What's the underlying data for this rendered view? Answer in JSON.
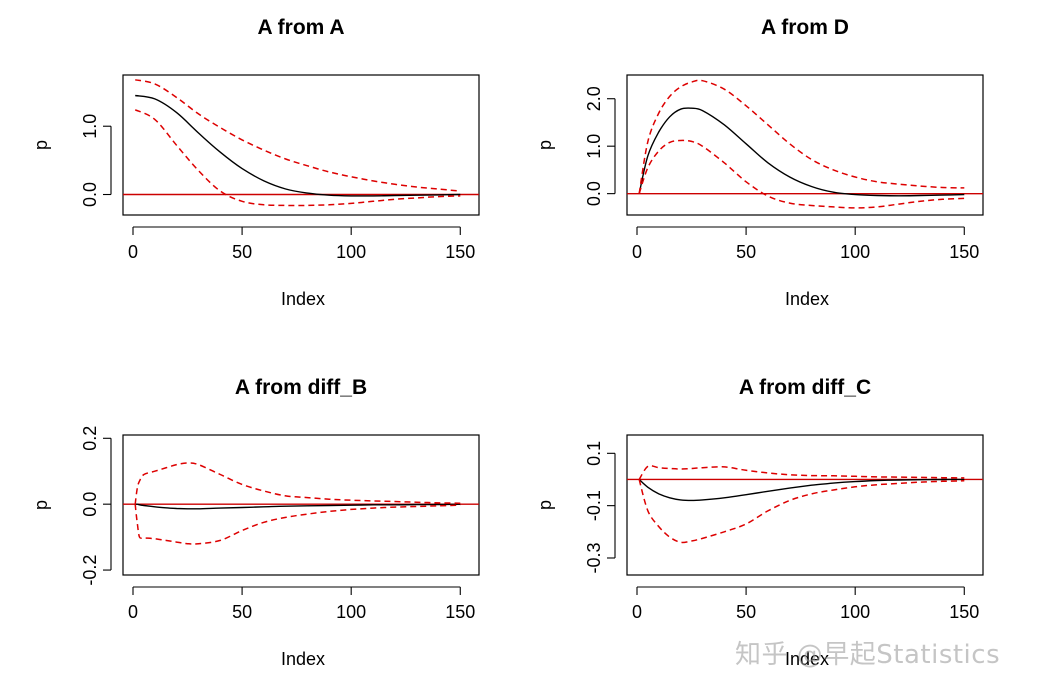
{
  "colors": {
    "estimate": "#000000",
    "band": "#dd0000",
    "zero": "#cc0000"
  },
  "watermark": "知乎 @早起Statistics",
  "chart_data": [
    {
      "type": "line",
      "title": "A from A",
      "xlabel": "Index",
      "ylabel": "p",
      "xlim": [
        0,
        154
      ],
      "ylim": [
        -0.3,
        1.75
      ],
      "xticks": [
        0,
        50,
        100,
        150
      ],
      "xtick_labels": [
        "0",
        "50",
        "100",
        "150"
      ],
      "yticks": [
        0.0,
        1.0
      ],
      "ytick_labels": [
        "0.0",
        "1.0"
      ],
      "x": [
        1,
        10,
        20,
        30,
        40,
        50,
        60,
        70,
        80,
        90,
        100,
        110,
        120,
        130,
        140,
        150
      ],
      "series": [
        {
          "name": "estimate",
          "style": "solid",
          "values": [
            1.45,
            1.4,
            1.2,
            0.9,
            0.62,
            0.38,
            0.2,
            0.08,
            0.02,
            -0.01,
            -0.02,
            -0.02,
            -0.015,
            -0.01,
            -0.005,
            0.0
          ]
        },
        {
          "name": "upper",
          "style": "dashed",
          "values": [
            1.68,
            1.62,
            1.42,
            1.18,
            0.98,
            0.8,
            0.65,
            0.52,
            0.42,
            0.33,
            0.26,
            0.2,
            0.15,
            0.11,
            0.08,
            0.05
          ]
        },
        {
          "name": "lower",
          "style": "dashed",
          "values": [
            1.24,
            1.1,
            0.72,
            0.35,
            0.05,
            -0.1,
            -0.15,
            -0.16,
            -0.16,
            -0.15,
            -0.13,
            -0.1,
            -0.07,
            -0.05,
            -0.03,
            -0.02
          ]
        }
      ],
      "hline": 0
    },
    {
      "type": "line",
      "title": "A from D",
      "xlabel": "Index",
      "ylabel": "p",
      "xlim": [
        0,
        154
      ],
      "ylim": [
        -0.45,
        2.5
      ],
      "xticks": [
        0,
        50,
        100,
        150
      ],
      "xtick_labels": [
        "0",
        "50",
        "100",
        "150"
      ],
      "yticks": [
        0.0,
        1.0,
        2.0
      ],
      "ytick_labels": [
        "0.0",
        "1.0",
        "2.0"
      ],
      "x": [
        1,
        5,
        10,
        15,
        20,
        25,
        30,
        40,
        50,
        60,
        70,
        80,
        90,
        100,
        110,
        120,
        130,
        140,
        150
      ],
      "series": [
        {
          "name": "estimate",
          "style": "solid",
          "values": [
            0.0,
            0.8,
            1.3,
            1.62,
            1.78,
            1.8,
            1.75,
            1.45,
            1.05,
            0.65,
            0.35,
            0.15,
            0.03,
            -0.02,
            -0.04,
            -0.045,
            -0.04,
            -0.03,
            -0.02
          ]
        },
        {
          "name": "upper",
          "style": "dashed",
          "values": [
            0.0,
            1.1,
            1.7,
            2.05,
            2.25,
            2.35,
            2.38,
            2.2,
            1.85,
            1.45,
            1.05,
            0.72,
            0.5,
            0.35,
            0.25,
            0.2,
            0.16,
            0.13,
            0.12
          ]
        },
        {
          "name": "lower",
          "style": "dashed",
          "values": [
            0.0,
            0.55,
            0.9,
            1.08,
            1.12,
            1.1,
            1.0,
            0.65,
            0.25,
            -0.05,
            -0.2,
            -0.25,
            -0.28,
            -0.3,
            -0.28,
            -0.22,
            -0.16,
            -0.12,
            -0.1
          ]
        }
      ],
      "hline": 0
    },
    {
      "type": "line",
      "title": "A from diff_B",
      "xlabel": "Index",
      "ylabel": "p",
      "xlim": [
        0,
        154
      ],
      "ylim": [
        -0.215,
        0.21
      ],
      "xticks": [
        0,
        50,
        100,
        150
      ],
      "xtick_labels": [
        "0",
        "50",
        "100",
        "150"
      ],
      "yticks": [
        -0.2,
        0.0,
        0.2
      ],
      "ytick_labels": [
        "-0.2",
        "0.0",
        "0.2"
      ],
      "x": [
        1,
        2,
        3,
        5,
        10,
        15,
        20,
        25,
        30,
        40,
        50,
        60,
        70,
        80,
        90,
        100,
        110,
        120,
        130,
        140,
        150
      ],
      "series": [
        {
          "name": "estimate",
          "style": "solid",
          "values": [
            0.0,
            0.0,
            -0.002,
            -0.004,
            -0.008,
            -0.011,
            -0.013,
            -0.014,
            -0.014,
            -0.012,
            -0.01,
            -0.008,
            -0.006,
            -0.005,
            -0.004,
            -0.003,
            -0.002,
            -0.002,
            -0.001,
            -0.001,
            0.0
          ]
        },
        {
          "name": "upper",
          "style": "dashed",
          "values": [
            0.0,
            0.05,
            0.07,
            0.09,
            0.1,
            0.11,
            0.12,
            0.125,
            0.12,
            0.09,
            0.06,
            0.04,
            0.025,
            0.02,
            0.015,
            0.012,
            0.01,
            0.008,
            0.006,
            0.004,
            0.003
          ]
        },
        {
          "name": "lower",
          "style": "dashed",
          "values": [
            0.0,
            -0.06,
            -0.1,
            -0.102,
            -0.105,
            -0.11,
            -0.115,
            -0.12,
            -0.12,
            -0.11,
            -0.08,
            -0.055,
            -0.04,
            -0.03,
            -0.022,
            -0.016,
            -0.012,
            -0.009,
            -0.007,
            -0.005,
            -0.003
          ]
        }
      ],
      "hline": 0
    },
    {
      "type": "line",
      "title": "A from diff_C",
      "xlabel": "Index",
      "ylabel": "p",
      "xlim": [
        0,
        154
      ],
      "ylim": [
        -0.365,
        0.17
      ],
      "xticks": [
        0,
        50,
        100,
        150
      ],
      "xtick_labels": [
        "0",
        "50",
        "100",
        "150"
      ],
      "yticks": [
        -0.3,
        -0.1,
        0.1
      ],
      "ytick_labels": [
        "-0.3",
        "-0.1",
        "0.1"
      ],
      "x": [
        1,
        5,
        10,
        15,
        20,
        25,
        30,
        40,
        50,
        60,
        70,
        80,
        90,
        100,
        110,
        120,
        130,
        140,
        150
      ],
      "series": [
        {
          "name": "estimate",
          "style": "solid",
          "values": [
            0.0,
            -0.03,
            -0.055,
            -0.07,
            -0.078,
            -0.08,
            -0.078,
            -0.07,
            -0.058,
            -0.045,
            -0.033,
            -0.022,
            -0.014,
            -0.008,
            -0.004,
            -0.002,
            -0.001,
            0.0,
            0.0
          ]
        },
        {
          "name": "upper",
          "style": "dashed",
          "values": [
            0.0,
            0.05,
            0.045,
            0.042,
            0.04,
            0.042,
            0.045,
            0.048,
            0.035,
            0.025,
            0.018,
            0.015,
            0.014,
            0.012,
            0.01,
            0.009,
            0.008,
            0.007,
            0.006
          ]
        },
        {
          "name": "lower",
          "style": "dashed",
          "values": [
            0.0,
            -0.12,
            -0.18,
            -0.22,
            -0.24,
            -0.235,
            -0.225,
            -0.2,
            -0.17,
            -0.12,
            -0.08,
            -0.055,
            -0.04,
            -0.028,
            -0.02,
            -0.015,
            -0.01,
            -0.007,
            -0.005
          ]
        }
      ],
      "hline": 0
    }
  ]
}
